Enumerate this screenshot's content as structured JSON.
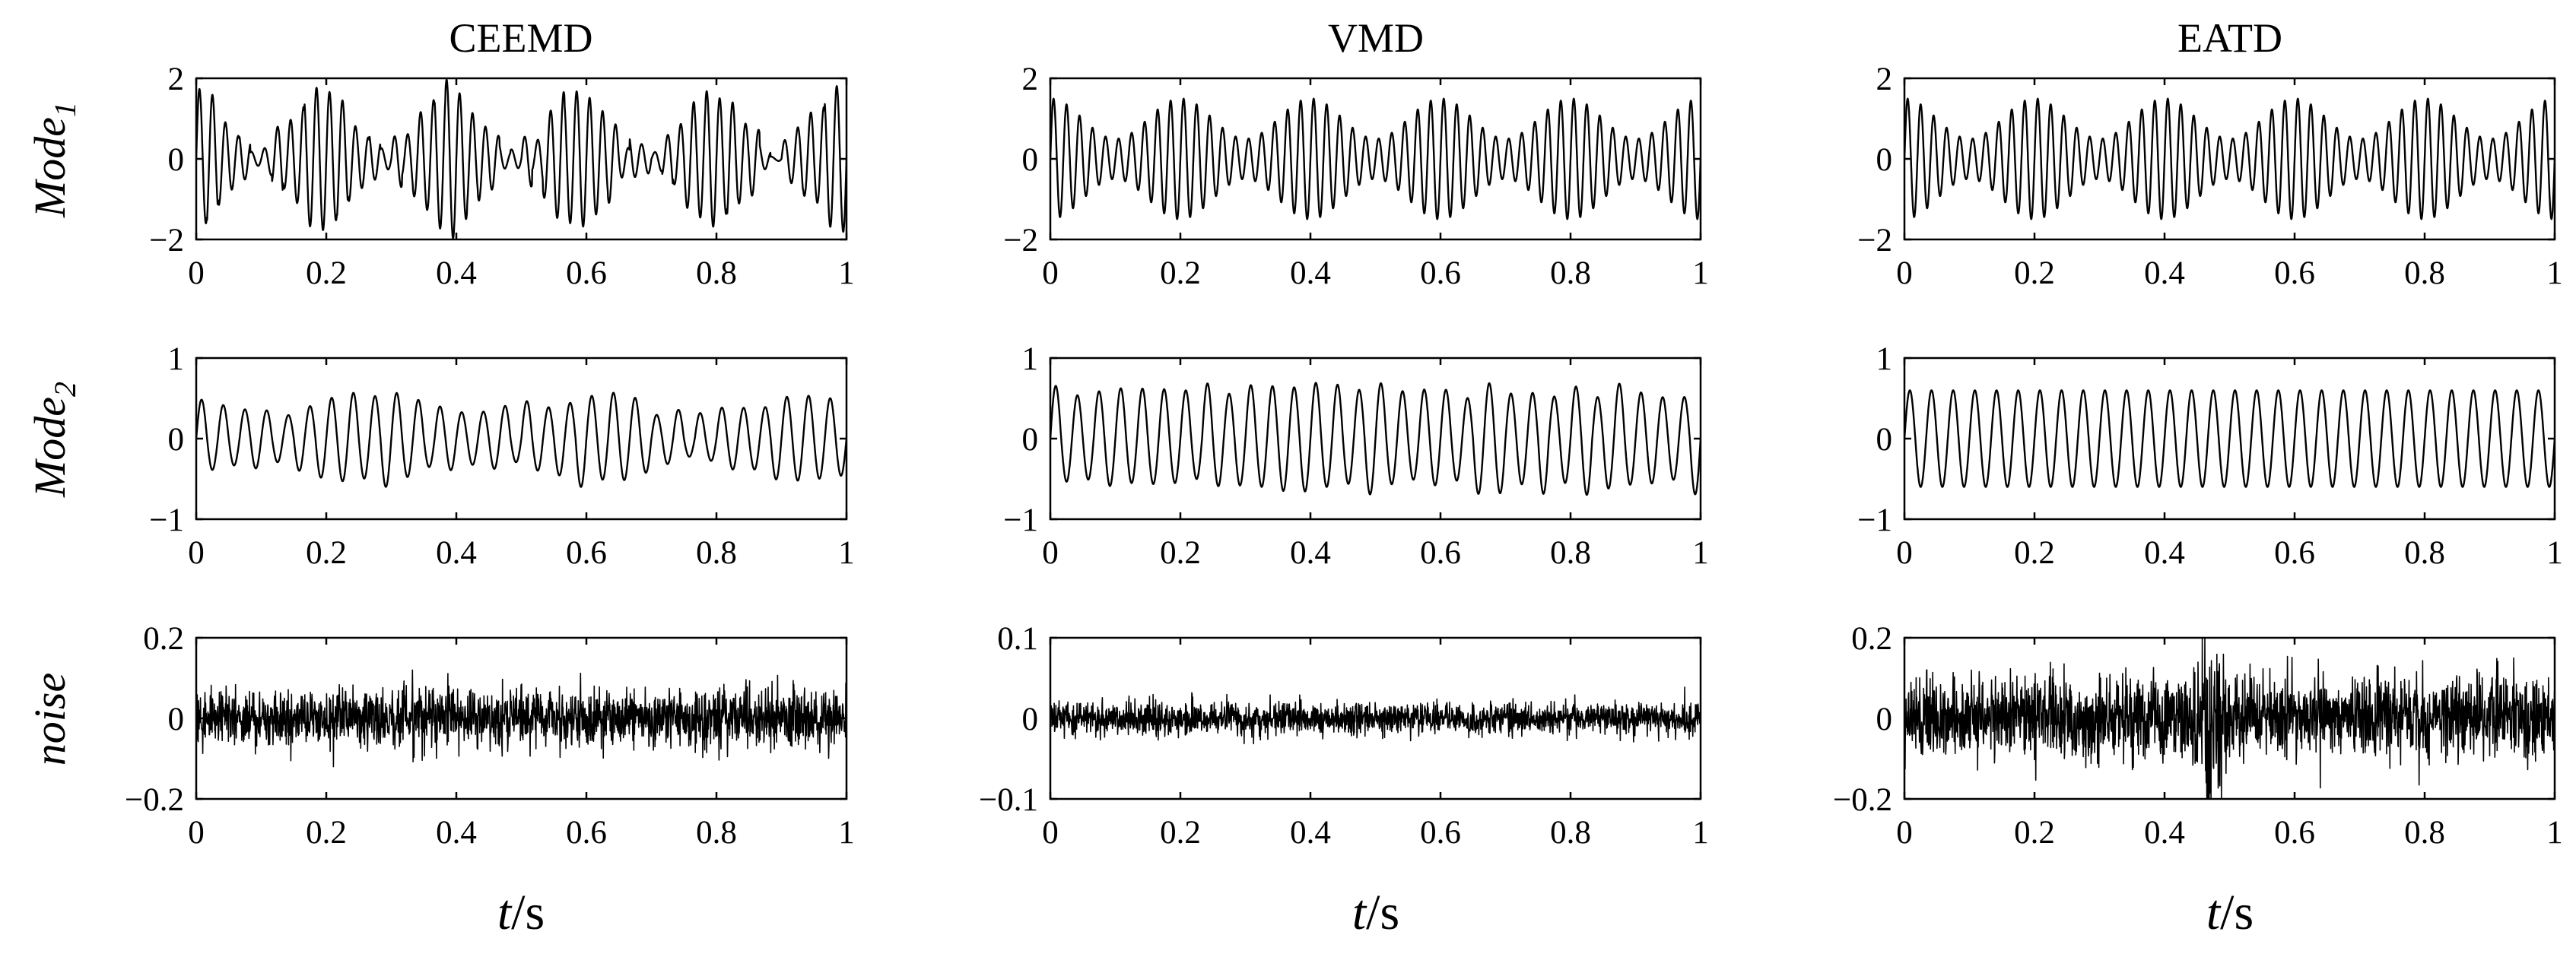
{
  "figure": {
    "column_titles": [
      "CEEMD",
      "VMD",
      "EATD"
    ],
    "row_labels": [
      {
        "base": "Mode",
        "sub": "1"
      },
      {
        "base": "Mode",
        "sub": "2"
      },
      {
        "base": "noise",
        "sub": ""
      }
    ],
    "xlabel": {
      "var": "t",
      "unit": "/s"
    }
  },
  "chart_data": [
    {
      "type": "line",
      "method": "CEEMD",
      "component": "Mode1",
      "xlim": [
        0,
        1
      ],
      "ylim": [
        -2,
        2
      ],
      "xticks": [
        0,
        0.2,
        0.4,
        0.6,
        0.8,
        1
      ],
      "xtick_labels": [
        "0",
        "0.2",
        "0.4",
        "0.6",
        "0.8",
        "1"
      ],
      "yticks": [
        -2,
        0,
        2
      ],
      "ytick_labels": [
        "−2",
        "0",
        "2"
      ],
      "signal": {
        "kind": "am_sine",
        "freq_hz": 50,
        "base_amp": 1.0,
        "mod_amp": 0.75,
        "mod_freq_hz": 5,
        "mod_phase": 0.3,
        "jitter": 0.25
      }
    },
    {
      "type": "line",
      "method": "VMD",
      "component": "Mode1",
      "xlim": [
        0,
        1
      ],
      "ylim": [
        -2,
        2
      ],
      "xticks": [
        0,
        0.2,
        0.4,
        0.6,
        0.8,
        1
      ],
      "xtick_labels": [
        "0",
        "0.2",
        "0.4",
        "0.6",
        "0.8",
        "1"
      ],
      "yticks": [
        -2,
        0,
        2
      ],
      "ytick_labels": [
        "−2",
        "0",
        "2"
      ],
      "signal": {
        "kind": "am_sine",
        "freq_hz": 50,
        "base_amp": 1.0,
        "mod_amp": 0.5,
        "mod_freq_hz": 5,
        "mod_phase": 0.0,
        "jitter": 0.0
      }
    },
    {
      "type": "line",
      "method": "EATD",
      "component": "Mode1",
      "xlim": [
        0,
        1
      ],
      "ylim": [
        -2,
        2
      ],
      "xticks": [
        0,
        0.2,
        0.4,
        0.6,
        0.8,
        1
      ],
      "xtick_labels": [
        "0",
        "0.2",
        "0.4",
        "0.6",
        "0.8",
        "1"
      ],
      "yticks": [
        -2,
        0,
        2
      ],
      "ytick_labels": [
        "−2",
        "0",
        "2"
      ],
      "signal": {
        "kind": "am_sine",
        "freq_hz": 50,
        "base_amp": 1.0,
        "mod_amp": 0.5,
        "mod_freq_hz": 5,
        "mod_phase": 0.0,
        "jitter": 0.0
      }
    },
    {
      "type": "line",
      "method": "CEEMD",
      "component": "Mode2",
      "xlim": [
        0,
        1
      ],
      "ylim": [
        -1,
        1
      ],
      "xticks": [
        0,
        0.2,
        0.4,
        0.6,
        0.8,
        1
      ],
      "xtick_labels": [
        "0",
        "0.2",
        "0.4",
        "0.6",
        "0.8",
        "1"
      ],
      "yticks": [
        -1,
        0,
        1
      ],
      "ytick_labels": [
        "−1",
        "0",
        "1"
      ],
      "signal": {
        "kind": "am_sine",
        "freq_hz": 30,
        "base_amp": 0.42,
        "mod_amp": 0.12,
        "mod_freq_hz": 3,
        "mod_phase": 1.2,
        "jitter": 0.08
      }
    },
    {
      "type": "line",
      "method": "VMD",
      "component": "Mode2",
      "xlim": [
        0,
        1
      ],
      "ylim": [
        -1,
        1
      ],
      "xticks": [
        0,
        0.2,
        0.4,
        0.6,
        0.8,
        1
      ],
      "xtick_labels": [
        "0",
        "0.2",
        "0.4",
        "0.6",
        "0.8",
        "1"
      ],
      "yticks": [
        -1,
        0,
        1
      ],
      "ytick_labels": [
        "−1",
        "0",
        "1"
      ],
      "signal": {
        "kind": "am_sine",
        "freq_hz": 30,
        "base_amp": 0.6,
        "mod_amp": 0.0,
        "mod_freq_hz": 0,
        "mod_phase": 0.0,
        "jitter": 0.1
      }
    },
    {
      "type": "line",
      "method": "EATD",
      "component": "Mode2",
      "xlim": [
        0,
        1
      ],
      "ylim": [
        -1,
        1
      ],
      "xticks": [
        0,
        0.2,
        0.4,
        0.6,
        0.8,
        1
      ],
      "xtick_labels": [
        "0",
        "0.2",
        "0.4",
        "0.6",
        "0.8",
        "1"
      ],
      "yticks": [
        -1,
        0,
        1
      ],
      "ytick_labels": [
        "−1",
        "0",
        "1"
      ],
      "signal": {
        "kind": "am_sine",
        "freq_hz": 30,
        "base_amp": 0.6,
        "mod_amp": 0.0,
        "mod_freq_hz": 0,
        "mod_phase": 0.0,
        "jitter": 0.0
      }
    },
    {
      "type": "line",
      "method": "CEEMD",
      "component": "noise",
      "xlim": [
        0,
        1
      ],
      "ylim": [
        -0.2,
        0.2
      ],
      "xticks": [
        0,
        0.2,
        0.4,
        0.6,
        0.8,
        1
      ],
      "xtick_labels": [
        "0",
        "0.2",
        "0.4",
        "0.6",
        "0.8",
        "1"
      ],
      "yticks": [
        -0.2,
        0,
        0.2
      ],
      "ytick_labels": [
        "−0.2",
        "0",
        "0.2"
      ],
      "signal": {
        "kind": "noise",
        "std": 0.035,
        "peak": 0.12,
        "burst_center": 0.0,
        "burst_gain": 0.0
      }
    },
    {
      "type": "line",
      "method": "VMD",
      "component": "noise",
      "xlim": [
        0,
        1
      ],
      "ylim": [
        -0.1,
        0.1
      ],
      "xticks": [
        0,
        0.2,
        0.4,
        0.6,
        0.8,
        1
      ],
      "xtick_labels": [
        "0",
        "0.2",
        "0.4",
        "0.6",
        "0.8",
        "1"
      ],
      "yticks": [
        -0.1,
        0,
        0.1
      ],
      "ytick_labels": [
        "−0.1",
        "0",
        "0.1"
      ],
      "signal": {
        "kind": "noise",
        "std": 0.01,
        "peak": 0.04,
        "burst_center": 0.0,
        "burst_gain": 0.0
      }
    },
    {
      "type": "line",
      "method": "EATD",
      "component": "noise",
      "xlim": [
        0,
        1
      ],
      "ylim": [
        -0.2,
        0.2
      ],
      "xticks": [
        0,
        0.2,
        0.4,
        0.6,
        0.8,
        1
      ],
      "xtick_labels": [
        "0",
        "0.2",
        "0.4",
        "0.6",
        "0.8",
        "1"
      ],
      "yticks": [
        -0.2,
        0,
        0.2
      ],
      "ytick_labels": [
        "−0.2",
        "0",
        "0.2"
      ],
      "signal": {
        "kind": "noise",
        "std": 0.05,
        "peak": 0.2,
        "burst_center": 0.47,
        "burst_gain": 1.8
      }
    }
  ]
}
